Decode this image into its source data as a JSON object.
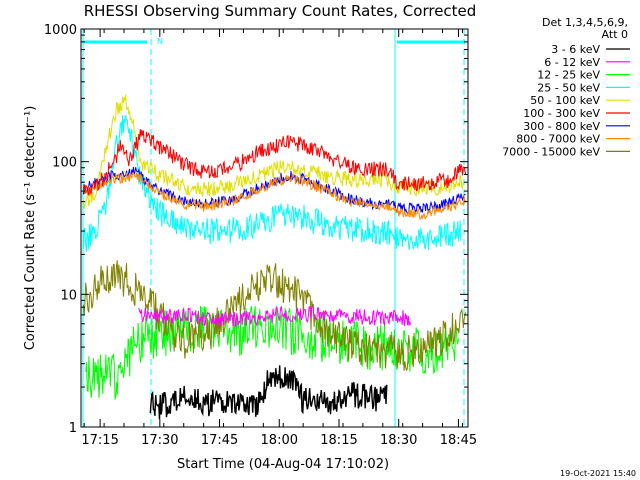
{
  "chart_data": {
    "type": "line",
    "title": "RHESSI Observing Summary Count Rates, Corrected",
    "xlabel": "Start Time (04-Aug-04 17:10:02)",
    "ylabel": "Corrected Count Rate (s⁻¹ detector⁻¹)",
    "yscale": "log",
    "ylim": [
      1,
      1000
    ],
    "xlim_minutes": [
      17.17,
      18.79
    ],
    "x_ticks": [
      {
        "label": "17:15",
        "t": 17.25
      },
      {
        "label": "17:30",
        "t": 17.5
      },
      {
        "label": "17:45",
        "t": 17.75
      },
      {
        "label": "18:00",
        "t": 18.0
      },
      {
        "label": "18:15",
        "t": 18.25
      },
      {
        "label": "18:30",
        "t": 18.5
      },
      {
        "label": "18:45",
        "t": 18.75
      }
    ],
    "y_ticks": [
      {
        "label": "1",
        "v": 1
      },
      {
        "label": "10",
        "v": 10
      },
      {
        "label": "100",
        "v": 100
      },
      {
        "label": "1000",
        "v": 1000
      }
    ],
    "legend": {
      "placement": "right",
      "header1": "Det 1,3,4,5,6,9,",
      "header2": "Att 0"
    },
    "annotation_n": "N",
    "timestamp": "19-Oct-2021 15:40",
    "series": [
      {
        "name": "3 - 6 keV",
        "color": "#000000",
        "points": [
          [
            17.46,
            1.6
          ],
          [
            17.5,
            1.4
          ],
          [
            17.6,
            1.7
          ],
          [
            17.7,
            1.5
          ],
          [
            17.8,
            1.6
          ],
          [
            17.9,
            1.4
          ],
          [
            17.95,
            2.2
          ],
          [
            18.0,
            2.4
          ],
          [
            18.05,
            2.2
          ],
          [
            18.1,
            1.6
          ],
          [
            18.2,
            1.5
          ],
          [
            18.3,
            1.8
          ],
          [
            18.4,
            1.6
          ],
          [
            18.45,
            1.8
          ]
        ]
      },
      {
        "name": "6 - 12 keV",
        "color": "#ff00ff",
        "points": [
          [
            17.41,
            7.2
          ],
          [
            17.5,
            6.8
          ],
          [
            17.6,
            6.9
          ],
          [
            17.7,
            6.6
          ],
          [
            17.8,
            6.5
          ],
          [
            17.9,
            6.7
          ],
          [
            18.0,
            7.0
          ],
          [
            18.1,
            7.1
          ],
          [
            18.2,
            7.0
          ],
          [
            18.3,
            6.8
          ],
          [
            18.4,
            6.7
          ],
          [
            18.55,
            6.6
          ]
        ]
      },
      {
        "name": "12 - 25 keV",
        "color": "#00ff00",
        "points": [
          [
            17.19,
            2.4
          ],
          [
            17.35,
            2.5
          ],
          [
            17.38,
            4.0
          ],
          [
            17.42,
            4.5
          ],
          [
            17.5,
            5.0
          ],
          [
            17.6,
            5.5
          ],
          [
            17.7,
            5.5
          ],
          [
            17.8,
            5.0
          ],
          [
            17.9,
            5.5
          ],
          [
            18.0,
            5.5
          ],
          [
            18.1,
            5.0
          ],
          [
            18.2,
            4.5
          ],
          [
            18.3,
            4.3
          ],
          [
            18.4,
            4.0
          ],
          [
            18.5,
            4.0
          ],
          [
            18.6,
            3.8
          ],
          [
            18.7,
            3.8
          ],
          [
            18.75,
            4.2
          ]
        ]
      },
      {
        "name": "25 - 50 keV",
        "color": "#00ffff",
        "points": [
          [
            17.18,
            25
          ],
          [
            17.23,
            30
          ],
          [
            17.27,
            45
          ],
          [
            17.32,
            140
          ],
          [
            17.36,
            210
          ],
          [
            17.38,
            150
          ],
          [
            17.42,
            70
          ],
          [
            17.48,
            45
          ],
          [
            17.55,
            35
          ],
          [
            17.65,
            30
          ],
          [
            17.75,
            30
          ],
          [
            17.85,
            31
          ],
          [
            17.95,
            36
          ],
          [
            18.02,
            40
          ],
          [
            18.1,
            38
          ],
          [
            18.2,
            33
          ],
          [
            18.3,
            31
          ],
          [
            18.4,
            30
          ],
          [
            18.45,
            29
          ],
          [
            18.5,
            27
          ],
          [
            18.6,
            26
          ],
          [
            18.7,
            28
          ],
          [
            18.76,
            30
          ]
        ]
      },
      {
        "name": "50 - 100 keV",
        "color": "#e0e000",
        "points": [
          [
            17.18,
            48
          ],
          [
            17.23,
            55
          ],
          [
            17.27,
            120
          ],
          [
            17.32,
            250
          ],
          [
            17.36,
            290
          ],
          [
            17.39,
            180
          ],
          [
            17.42,
            100
          ],
          [
            17.5,
            78
          ],
          [
            17.6,
            65
          ],
          [
            17.7,
            62
          ],
          [
            17.8,
            66
          ],
          [
            17.9,
            75
          ],
          [
            18.0,
            90
          ],
          [
            18.05,
            93
          ],
          [
            18.1,
            88
          ],
          [
            18.2,
            78
          ],
          [
            18.3,
            73
          ],
          [
            18.4,
            72
          ],
          [
            18.45,
            72
          ],
          [
            18.5,
            64
          ],
          [
            18.6,
            63
          ],
          [
            18.7,
            65
          ],
          [
            18.77,
            70
          ]
        ]
      },
      {
        "name": "100 - 300 keV",
        "color": "#ff0000",
        "points": [
          [
            17.18,
            60
          ],
          [
            17.25,
            70
          ],
          [
            17.3,
            95
          ],
          [
            17.34,
            135
          ],
          [
            17.37,
            100
          ],
          [
            17.42,
            160
          ],
          [
            17.5,
            130
          ],
          [
            17.6,
            95
          ],
          [
            17.7,
            82
          ],
          [
            17.8,
            90
          ],
          [
            17.9,
            115
          ],
          [
            18.0,
            135
          ],
          [
            18.05,
            140
          ],
          [
            18.1,
            132
          ],
          [
            18.2,
            110
          ],
          [
            18.3,
            92
          ],
          [
            18.4,
            88
          ],
          [
            18.45,
            88
          ],
          [
            18.5,
            68
          ],
          [
            18.6,
            68
          ],
          [
            18.7,
            72
          ],
          [
            18.78,
            90
          ]
        ]
      },
      {
        "name": "300 - 800 keV",
        "color": "#0000ff",
        "points": [
          [
            17.18,
            62
          ],
          [
            17.25,
            72
          ],
          [
            17.3,
            78
          ],
          [
            17.35,
            80
          ],
          [
            17.4,
            85
          ],
          [
            17.45,
            70
          ],
          [
            17.5,
            60
          ],
          [
            17.6,
            50
          ],
          [
            17.7,
            48
          ],
          [
            17.8,
            52
          ],
          [
            17.9,
            62
          ],
          [
            18.0,
            75
          ],
          [
            18.05,
            78
          ],
          [
            18.1,
            74
          ],
          [
            18.2,
            62
          ],
          [
            18.3,
            52
          ],
          [
            18.4,
            48
          ],
          [
            18.45,
            48
          ],
          [
            18.5,
            45
          ],
          [
            18.6,
            44
          ],
          [
            18.7,
            48
          ],
          [
            18.78,
            55
          ]
        ]
      },
      {
        "name": "800 - 7000 keV",
        "color": "#ff8800",
        "points": [
          [
            17.18,
            58
          ],
          [
            17.25,
            66
          ],
          [
            17.3,
            74
          ],
          [
            17.35,
            76
          ],
          [
            17.4,
            78
          ],
          [
            17.45,
            68
          ],
          [
            17.5,
            58
          ],
          [
            17.6,
            48
          ],
          [
            17.7,
            46
          ],
          [
            17.8,
            50
          ],
          [
            17.9,
            60
          ],
          [
            18.0,
            72
          ],
          [
            18.05,
            75
          ],
          [
            18.1,
            71
          ],
          [
            18.2,
            60
          ],
          [
            18.3,
            50
          ],
          [
            18.4,
            46
          ],
          [
            18.45,
            46
          ],
          [
            18.5,
            41
          ],
          [
            18.6,
            40
          ],
          [
            18.7,
            44
          ],
          [
            18.78,
            52
          ]
        ]
      },
      {
        "name": "7000 - 15000 keV",
        "color": "#808000",
        "points": [
          [
            17.18,
            8.5
          ],
          [
            17.22,
            11
          ],
          [
            17.27,
            13
          ],
          [
            17.3,
            14.5
          ],
          [
            17.35,
            13
          ],
          [
            17.4,
            11
          ],
          [
            17.45,
            9
          ],
          [
            17.5,
            7
          ],
          [
            17.55,
            5
          ],
          [
            17.6,
            4.5
          ],
          [
            17.7,
            5
          ],
          [
            17.8,
            7.5
          ],
          [
            17.9,
            11
          ],
          [
            17.97,
            13
          ],
          [
            18.05,
            11
          ],
          [
            18.1,
            8.5
          ],
          [
            18.2,
            5.5
          ],
          [
            18.3,
            4.0
          ],
          [
            18.4,
            3.8
          ],
          [
            18.5,
            3.6
          ],
          [
            18.6,
            3.8
          ],
          [
            18.7,
            5
          ],
          [
            18.78,
            7.5
          ]
        ]
      }
    ]
  }
}
